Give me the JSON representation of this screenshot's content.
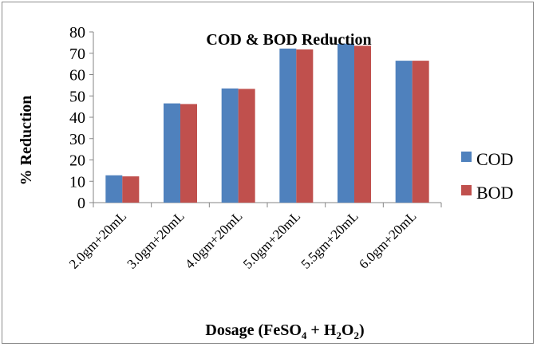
{
  "chart_data": {
    "type": "bar",
    "title": "COD & BOD Reduction",
    "xlabel": {
      "prefix": "Dosage (FeSO",
      "sub1": "4",
      "mid": " + H",
      "sub2": "2",
      "o": "O",
      "sub3": "2",
      "suffix": ")"
    },
    "ylabel": "% Reduction",
    "ylim": [
      0,
      80
    ],
    "yticks": [
      "0",
      "10",
      "20",
      "30",
      "40",
      "50",
      "60",
      "70",
      "80"
    ],
    "categories": [
      "2.0gm+20mL",
      "3.0gm+20mL",
      "4.0gm+20mL",
      "5.0gm+20mL",
      "5.5gm+20mL",
      "6.0gm+20mL"
    ],
    "series": [
      {
        "name": "COD",
        "color": "#4f81bd",
        "values": [
          12.8,
          46.5,
          53.5,
          72.2,
          74.5,
          66.5
        ]
      },
      {
        "name": "BOD",
        "color": "#c0504d",
        "values": [
          12.3,
          46.2,
          53.3,
          71.8,
          73.5,
          66.5
        ]
      }
    ],
    "grid": false,
    "legend_position": "right"
  }
}
